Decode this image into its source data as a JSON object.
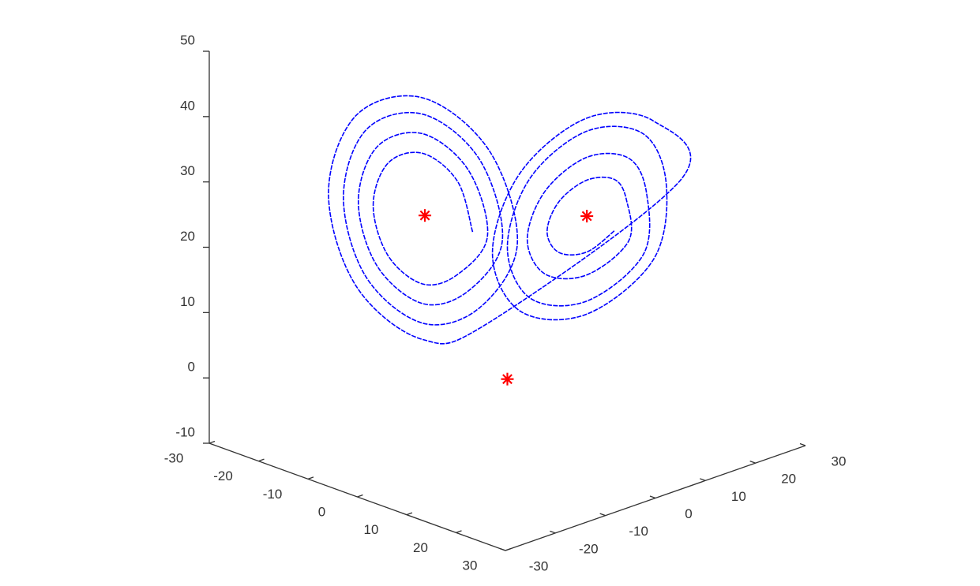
{
  "chart_data": {
    "type": "line3d",
    "xlim": [
      -30,
      30
    ],
    "ylim": [
      -30,
      30
    ],
    "zlim": [
      -10,
      50
    ],
    "xticks": [
      -30,
      -20,
      -10,
      0,
      10,
      20,
      30
    ],
    "yticks": [
      -30,
      -20,
      -10,
      0,
      10,
      20,
      30
    ],
    "zticks": [
      -10,
      0,
      10,
      20,
      30,
      40,
      50
    ],
    "series": [
      {
        "color": "#0000ff",
        "marker": "none",
        "x": [
          -3.5,
          -5,
          -8.5,
          -12,
          -13.5,
          -12,
          -8.5,
          -5,
          -2,
          -3.9,
          -8.5,
          -13.1,
          -15,
          -13.1,
          -8.5,
          -3.9,
          -0.5,
          -2.8,
          -8.5,
          -14.2,
          -16.5,
          -14.2,
          -8.5,
          -2.8,
          1,
          -1.8,
          -8.5,
          -15.2,
          -18,
          -15.2,
          -8.5,
          -1.8,
          17.5,
          14.7,
          8,
          1.3,
          -1.5,
          1.3,
          8,
          14.7,
          16,
          13.7,
          8,
          2.3,
          0,
          2.3,
          8,
          13.7,
          14,
          12.2,
          8,
          3.8,
          2,
          3.8,
          8,
          12.2,
          12,
          10.8,
          8,
          5.2,
          4,
          5.2,
          8,
          10.8
        ],
        "y": [
          -3.5,
          -5,
          -8.5,
          -12,
          -13.5,
          -12,
          -8.5,
          -5,
          -2,
          -3.9,
          -8.5,
          -13.1,
          -15,
          -13.1,
          -8.5,
          -3.9,
          -0.5,
          -2.8,
          -8.5,
          -14.2,
          -16.5,
          -14.2,
          -8.5,
          -2.8,
          1,
          -1.8,
          -8.5,
          -15.2,
          -18,
          -15.2,
          -8.5,
          -1.8,
          17.5,
          14.7,
          8,
          1.3,
          -1.5,
          1.3,
          8,
          14.7,
          16,
          13.7,
          8,
          2.3,
          0,
          2.3,
          8,
          13.7,
          14,
          12.2,
          8,
          3.8,
          2,
          3.8,
          8,
          12.2,
          12,
          10.8,
          8,
          5.2,
          4,
          5.2,
          8,
          10.8
        ],
        "z": [
          22.5,
          30.2,
          34.5,
          33,
          26.5,
          18.8,
          14.5,
          16,
          21.9,
          31.9,
          37.5,
          35.5,
          27.1,
          17.2,
          11.5,
          13.5,
          21.3,
          33.6,
          40.5,
          38.1,
          27.7,
          15.5,
          8.5,
          10.9,
          20.7,
          34.9,
          43,
          40.3,
          28.3,
          14.1,
          6,
          8.7,
          30.7,
          39.6,
          40,
          31.6,
          19.3,
          10.4,
          10,
          18.4,
          29.8,
          37.6,
          38,
          30.8,
          20.2,
          12.4,
          12,
          19.2,
          28.6,
          33.9,
          34,
          28.8,
          21.4,
          16.1,
          16,
          21.2,
          27.4,
          30.6,
          30.5,
          27.2,
          22.6,
          19.4,
          19.5,
          22.8
        ]
      },
      {
        "color": "#ff0000",
        "marker": "*",
        "x": [
          -8.3,
          8,
          0
        ],
        "y": [
          -8.3,
          8,
          0
        ],
        "z": [
          25,
          25,
          0
        ]
      }
    ]
  }
}
